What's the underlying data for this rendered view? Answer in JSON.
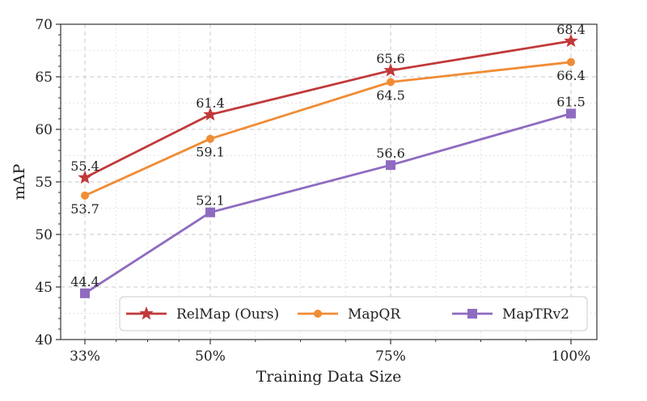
{
  "chart_data": {
    "type": "line",
    "categories": [
      "33%",
      "50%",
      "75%",
      "100%"
    ],
    "xlabel": "Training Data Size",
    "ylabel": "mAP",
    "ylim": [
      40,
      70
    ],
    "yticks": [
      "40",
      "45",
      "50",
      "55",
      "60",
      "65",
      "70"
    ],
    "grid": true,
    "legend_position": "bottom-right",
    "series": [
      {
        "name": "RelMap (Ours)",
        "values": [
          55.4,
          61.4,
          65.6,
          68.4
        ],
        "labels": [
          "55.4",
          "61.4",
          "65.6",
          "68.4"
        ],
        "label_side": [
          "above",
          "above",
          "above",
          "above"
        ],
        "color": "#c1393a",
        "marker": "star"
      },
      {
        "name": "MapQR",
        "values": [
          53.7,
          59.1,
          64.5,
          66.4
        ],
        "labels": [
          "53.7",
          "59.1",
          "64.5",
          "66.4"
        ],
        "label_side": [
          "below",
          "below",
          "below",
          "below"
        ],
        "color": "#f08c35",
        "marker": "circle"
      },
      {
        "name": "MapTRv2",
        "values": [
          44.4,
          52.1,
          56.6,
          61.5
        ],
        "labels": [
          "44.4",
          "52.1",
          "56.6",
          "61.5"
        ],
        "label_side": [
          "above",
          "above",
          "above",
          "above"
        ],
        "color": "#8f6bc0",
        "marker": "square"
      }
    ]
  }
}
